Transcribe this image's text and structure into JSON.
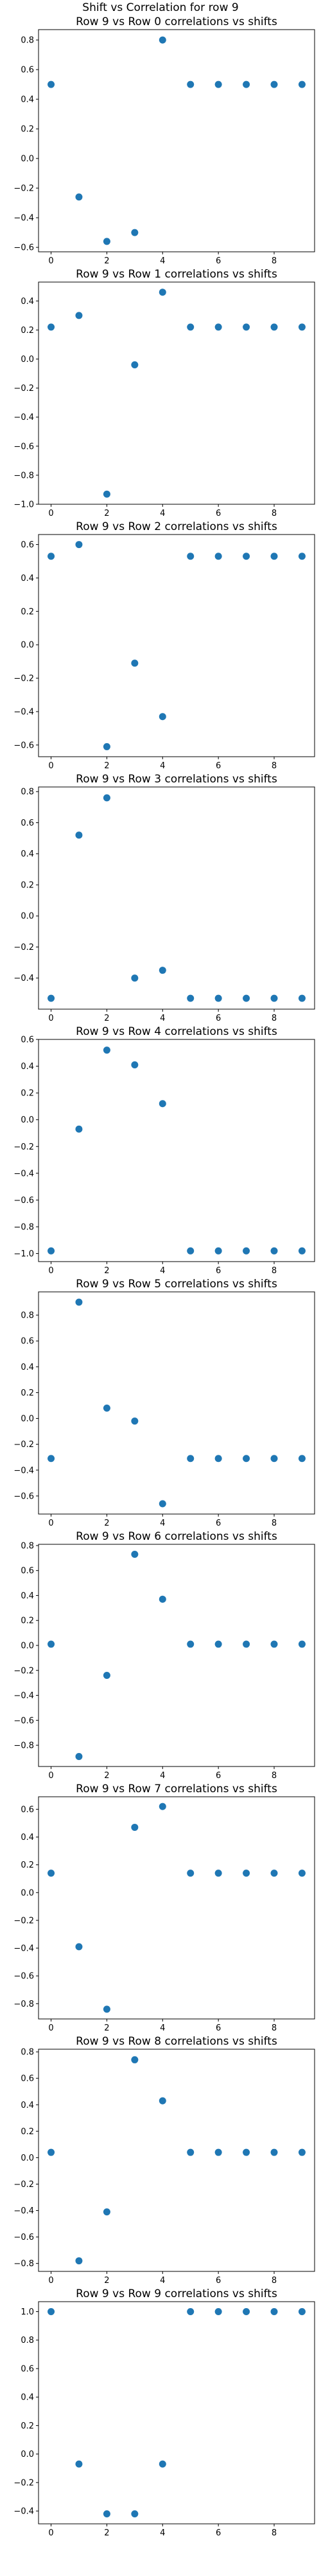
{
  "figure": {
    "title": "Shift vs Correlation for row 9"
  },
  "colors": {
    "marker": "#1f77b4",
    "axes": "#000000",
    "background": "#ffffff"
  },
  "chart_data": [
    {
      "type": "scatter",
      "title": "Row 9 vs Row 0 correlations vs shifts",
      "x": [
        0,
        1,
        2,
        3,
        4,
        5,
        6,
        7,
        8,
        9
      ],
      "y": [
        0.5,
        -0.26,
        -0.56,
        -0.5,
        0.8,
        0.5,
        0.5,
        0.5,
        0.5,
        0.5
      ],
      "xlim": [
        -0.45,
        9.45
      ],
      "ylim": [
        -0.63,
        0.87
      ],
      "xticks": [
        0,
        2,
        4,
        6,
        8
      ],
      "yticks": [
        -0.6,
        -0.4,
        -0.2,
        0.0,
        0.2,
        0.4,
        0.6,
        0.8
      ],
      "ytick_labels": [
        "−0.6",
        "−0.4",
        "−0.2",
        "0.0",
        "0.2",
        "0.4",
        "0.6",
        "0.8"
      ],
      "grid": false
    },
    {
      "type": "scatter",
      "title": "Row 9 vs Row 1 correlations vs shifts",
      "x": [
        0,
        1,
        2,
        3,
        4,
        5,
        6,
        7,
        8,
        9
      ],
      "y": [
        0.22,
        0.3,
        -0.93,
        -0.04,
        0.46,
        0.22,
        0.22,
        0.22,
        0.22,
        0.22
      ],
      "xlim": [
        -0.45,
        9.45
      ],
      "ylim": [
        -1.0,
        0.53
      ],
      "xticks": [
        0,
        2,
        4,
        6,
        8
      ],
      "yticks": [
        -1.0,
        -0.8,
        -0.6,
        -0.4,
        -0.2,
        0.0,
        0.2,
        0.4
      ],
      "ytick_labels": [
        "−1.0",
        "−0.8",
        "−0.6",
        "−0.4",
        "−0.2",
        "0.0",
        "0.2",
        "0.4"
      ],
      "grid": false
    },
    {
      "type": "scatter",
      "title": "Row 9 vs Row 2 correlations vs shifts",
      "x": [
        0,
        1,
        2,
        3,
        4,
        5,
        6,
        7,
        8,
        9
      ],
      "y": [
        0.53,
        0.6,
        -0.61,
        -0.11,
        -0.43,
        0.53,
        0.53,
        0.53,
        0.53,
        0.53
      ],
      "xlim": [
        -0.45,
        9.45
      ],
      "ylim": [
        -0.67,
        0.66
      ],
      "xticks": [
        0,
        2,
        4,
        6,
        8
      ],
      "yticks": [
        -0.6,
        -0.4,
        -0.2,
        0.0,
        0.2,
        0.4,
        0.6
      ],
      "ytick_labels": [
        "−0.6",
        "−0.4",
        "−0.2",
        "0.0",
        "0.2",
        "0.4",
        "0.6"
      ],
      "grid": false
    },
    {
      "type": "scatter",
      "title": "Row 9 vs Row 3 correlations vs shifts",
      "x": [
        0,
        1,
        2,
        3,
        4,
        5,
        6,
        7,
        8,
        9
      ],
      "y": [
        -0.53,
        0.52,
        0.76,
        -0.4,
        -0.35,
        -0.53,
        -0.53,
        -0.53,
        -0.53,
        -0.53
      ],
      "xlim": [
        -0.45,
        9.45
      ],
      "ylim": [
        -0.6,
        0.83
      ],
      "xticks": [
        0,
        2,
        4,
        6,
        8
      ],
      "yticks": [
        -0.4,
        -0.2,
        0.0,
        0.2,
        0.4,
        0.6,
        0.8
      ],
      "ytick_labels": [
        "−0.4",
        "−0.2",
        "0.0",
        "0.2",
        "0.4",
        "0.6",
        "0.8"
      ],
      "grid": false
    },
    {
      "type": "scatter",
      "title": "Row 9 vs Row 4 correlations vs shifts",
      "x": [
        0,
        1,
        2,
        3,
        4,
        5,
        6,
        7,
        8,
        9
      ],
      "y": [
        -0.98,
        -0.07,
        0.52,
        0.41,
        0.12,
        -0.98,
        -0.98,
        -0.98,
        -0.98,
        -0.98
      ],
      "xlim": [
        -0.45,
        9.45
      ],
      "ylim": [
        -1.06,
        0.6
      ],
      "xticks": [
        0,
        2,
        4,
        6,
        8
      ],
      "yticks": [
        -1.0,
        -0.8,
        -0.6,
        -0.4,
        -0.2,
        0.0,
        0.2,
        0.4,
        0.6
      ],
      "ytick_labels": [
        "−1.0",
        "−0.8",
        "−0.6",
        "−0.4",
        "−0.2",
        "0.0",
        "0.2",
        "0.4",
        "0.6"
      ],
      "grid": false
    },
    {
      "type": "scatter",
      "title": "Row 9 vs Row 5 correlations vs shifts",
      "x": [
        0,
        1,
        2,
        3,
        4,
        5,
        6,
        7,
        8,
        9
      ],
      "y": [
        -0.31,
        0.9,
        0.08,
        -0.02,
        -0.66,
        -0.31,
        -0.31,
        -0.31,
        -0.31,
        -0.31
      ],
      "xlim": [
        -0.45,
        9.45
      ],
      "ylim": [
        -0.74,
        0.98
      ],
      "xticks": [
        0,
        2,
        4,
        6,
        8
      ],
      "yticks": [
        -0.6,
        -0.4,
        -0.2,
        0.0,
        0.2,
        0.4,
        0.6,
        0.8
      ],
      "ytick_labels": [
        "−0.6",
        "−0.4",
        "−0.2",
        "0.0",
        "0.2",
        "0.4",
        "0.6",
        "0.8"
      ],
      "grid": false
    },
    {
      "type": "scatter",
      "title": "Row 9 vs Row 6 correlations vs shifts",
      "x": [
        0,
        1,
        2,
        3,
        4,
        5,
        6,
        7,
        8,
        9
      ],
      "y": [
        0.01,
        -0.89,
        -0.24,
        0.73,
        0.37,
        0.01,
        0.01,
        0.01,
        0.01,
        0.01
      ],
      "xlim": [
        -0.45,
        9.45
      ],
      "ylim": [
        -0.97,
        0.81
      ],
      "xticks": [
        0,
        2,
        4,
        6,
        8
      ],
      "yticks": [
        -0.8,
        -0.6,
        -0.4,
        -0.2,
        0.0,
        0.2,
        0.4,
        0.6,
        0.8
      ],
      "ytick_labels": [
        "−0.8",
        "−0.6",
        "−0.4",
        "−0.2",
        "0.0",
        "0.2",
        "0.4",
        "0.6",
        "0.8"
      ],
      "grid": false
    },
    {
      "type": "scatter",
      "title": "Row 9 vs Row 7 correlations vs shifts",
      "x": [
        0,
        1,
        2,
        3,
        4,
        5,
        6,
        7,
        8,
        9
      ],
      "y": [
        0.14,
        -0.39,
        -0.84,
        0.47,
        0.62,
        0.14,
        0.14,
        0.14,
        0.14,
        0.14
      ],
      "xlim": [
        -0.45,
        9.45
      ],
      "ylim": [
        -0.91,
        0.69
      ],
      "xticks": [
        0,
        2,
        4,
        6,
        8
      ],
      "yticks": [
        -0.8,
        -0.6,
        -0.4,
        -0.2,
        0.0,
        0.2,
        0.4,
        0.6
      ],
      "ytick_labels": [
        "−0.8",
        "−0.6",
        "−0.4",
        "−0.2",
        "0.0",
        "0.2",
        "0.4",
        "0.6"
      ],
      "grid": false
    },
    {
      "type": "scatter",
      "title": "Row 9 vs Row 8 correlations vs shifts",
      "x": [
        0,
        1,
        2,
        3,
        4,
        5,
        6,
        7,
        8,
        9
      ],
      "y": [
        0.04,
        -0.78,
        -0.41,
        0.74,
        0.43,
        0.04,
        0.04,
        0.04,
        0.04,
        0.04
      ],
      "xlim": [
        -0.45,
        9.45
      ],
      "ylim": [
        -0.86,
        0.82
      ],
      "xticks": [
        0,
        2,
        4,
        6,
        8
      ],
      "yticks": [
        -0.8,
        -0.6,
        -0.4,
        -0.2,
        0.0,
        0.2,
        0.4,
        0.6,
        0.8
      ],
      "ytick_labels": [
        "−0.8",
        "−0.6",
        "−0.4",
        "−0.2",
        "0.0",
        "0.2",
        "0.4",
        "0.6",
        "0.8"
      ],
      "grid": false
    },
    {
      "type": "scatter",
      "title": "Row 9 vs Row 9 correlations vs shifts",
      "x": [
        0,
        1,
        2,
        3,
        4,
        5,
        6,
        7,
        8,
        9
      ],
      "y": [
        1.0,
        -0.07,
        -0.42,
        -0.42,
        -0.07,
        1.0,
        1.0,
        1.0,
        1.0,
        1.0
      ],
      "xlim": [
        -0.45,
        9.45
      ],
      "ylim": [
        -0.49,
        1.07
      ],
      "xticks": [
        0,
        2,
        4,
        6,
        8
      ],
      "yticks": [
        -0.4,
        -0.2,
        0.0,
        0.2,
        0.4,
        0.6,
        0.8,
        1.0
      ],
      "ytick_labels": [
        "−0.4",
        "−0.2",
        "0.0",
        "0.2",
        "0.4",
        "0.6",
        "0.8",
        "1.0"
      ],
      "grid": false
    }
  ]
}
